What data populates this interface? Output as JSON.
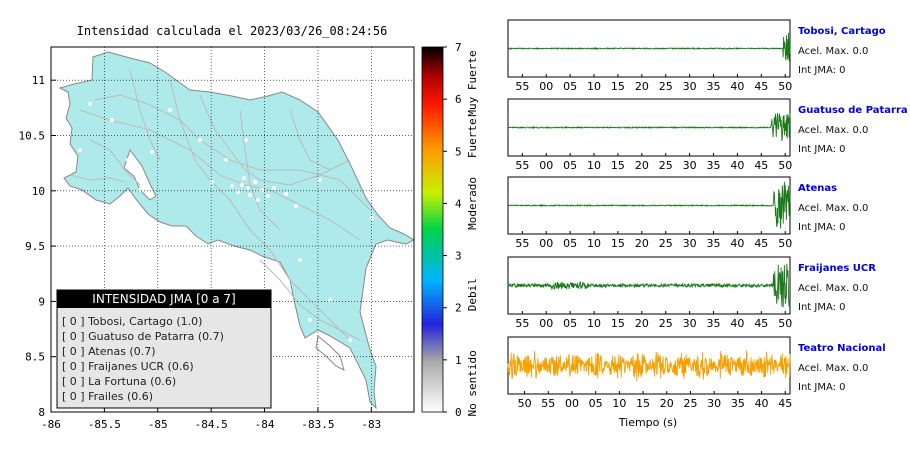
{
  "map": {
    "title": "Intensidad calculada el 2023/03/26_08:24:56",
    "x_ticks": [
      "-86",
      "-85.5",
      "-85",
      "-84.5",
      "-84",
      "-83.5",
      "-83"
    ],
    "y_ticks": [
      "11",
      "10.5",
      "10",
      "9.5",
      "9",
      "8.5",
      "8"
    ],
    "xlim": [
      -86,
      -82.6
    ],
    "ylim": [
      8,
      11.3
    ]
  },
  "colorbar": {
    "ticks": [
      "0",
      "1",
      "2",
      "3",
      "4",
      "5",
      "6",
      "7"
    ],
    "labels": [
      "No sentido",
      "Debil",
      "Moderado",
      "Fuerte",
      "Muy Fuerte"
    ]
  },
  "legend": {
    "title": "INTENSIDAD JMA [0 a 7]",
    "items": [
      "[ 0 ]  Tobosi, Cartago (1.0)",
      "[ 0 ]  Guatuso de Patarra (0.7)",
      "[ 0 ]  Atenas (0.7)",
      "[ 0 ]  Fraijanes UCR (0.6)",
      "[ 0 ]  La Fortuna (0.6)",
      "[ 0 ]  Frailes (0.6)"
    ]
  },
  "waveforms": {
    "xlabel": "Tiempo (s)",
    "traces": [
      {
        "station": "Tobosi, Cartago",
        "accel": "Acel. Max. 0.0",
        "jma": "Int JMA: 0",
        "color": "#1a7a1a",
        "ticks": [
          "55",
          "00",
          "05",
          "10",
          "15",
          "20",
          "25",
          "30",
          "35",
          "40",
          "45",
          "50"
        ],
        "tick_start": 55,
        "t0": 52,
        "t1": 111,
        "event_start": 109.5,
        "event_amp": 0.75,
        "noise_amp": 0.02
      },
      {
        "station": "Guatuso de Patarra",
        "accel": "Acel. Max. 0.0",
        "jma": "Int JMA: 0",
        "color": "#1a7a1a",
        "ticks": [
          "55",
          "00",
          "05",
          "10",
          "15",
          "20",
          "25",
          "30",
          "35",
          "40",
          "45",
          "50"
        ],
        "tick_start": 55,
        "t0": 52,
        "t1": 111,
        "event_start": 107,
        "event_amp": 0.55,
        "noise_amp": 0.02
      },
      {
        "station": "Atenas",
        "accel": "Acel. Max. 0.0",
        "jma": "Int JMA: 0",
        "color": "#1a7a1a",
        "ticks": [
          "55",
          "00",
          "05",
          "10",
          "15",
          "20",
          "25",
          "30",
          "35",
          "40",
          "45",
          "50"
        ],
        "tick_start": 55,
        "t0": 52,
        "t1": 111,
        "event_start": 107.5,
        "event_amp": 0.9,
        "noise_amp": 0.02
      },
      {
        "station": "Fraijanes UCR",
        "accel": "Acel. Max. 0.0",
        "jma": "Int JMA: 0",
        "color": "#1a7a1a",
        "ticks": [
          "55",
          "00",
          "05",
          "10",
          "15",
          "20",
          "25",
          "30",
          "35",
          "40",
          "45",
          "50"
        ],
        "tick_start": 55,
        "t0": 52,
        "t1": 111,
        "event_start": 107.5,
        "event_amp": 0.85,
        "noise_amp": 0.06,
        "burst_start": 61,
        "burst_end": 69
      },
      {
        "station": "Teatro Nacional",
        "accel": "Acel. Max. 0.0",
        "jma": "Int JMA: 0",
        "color": "#f5a000",
        "ticks": [
          "50",
          "55",
          "00",
          "05",
          "10",
          "15",
          "20",
          "25",
          "30",
          "35",
          "40",
          "45"
        ],
        "tick_start": 50,
        "t0": 46.5,
        "t1": 106,
        "event_start": 200,
        "event_amp": 0,
        "noise_amp": 0.55
      }
    ]
  }
}
